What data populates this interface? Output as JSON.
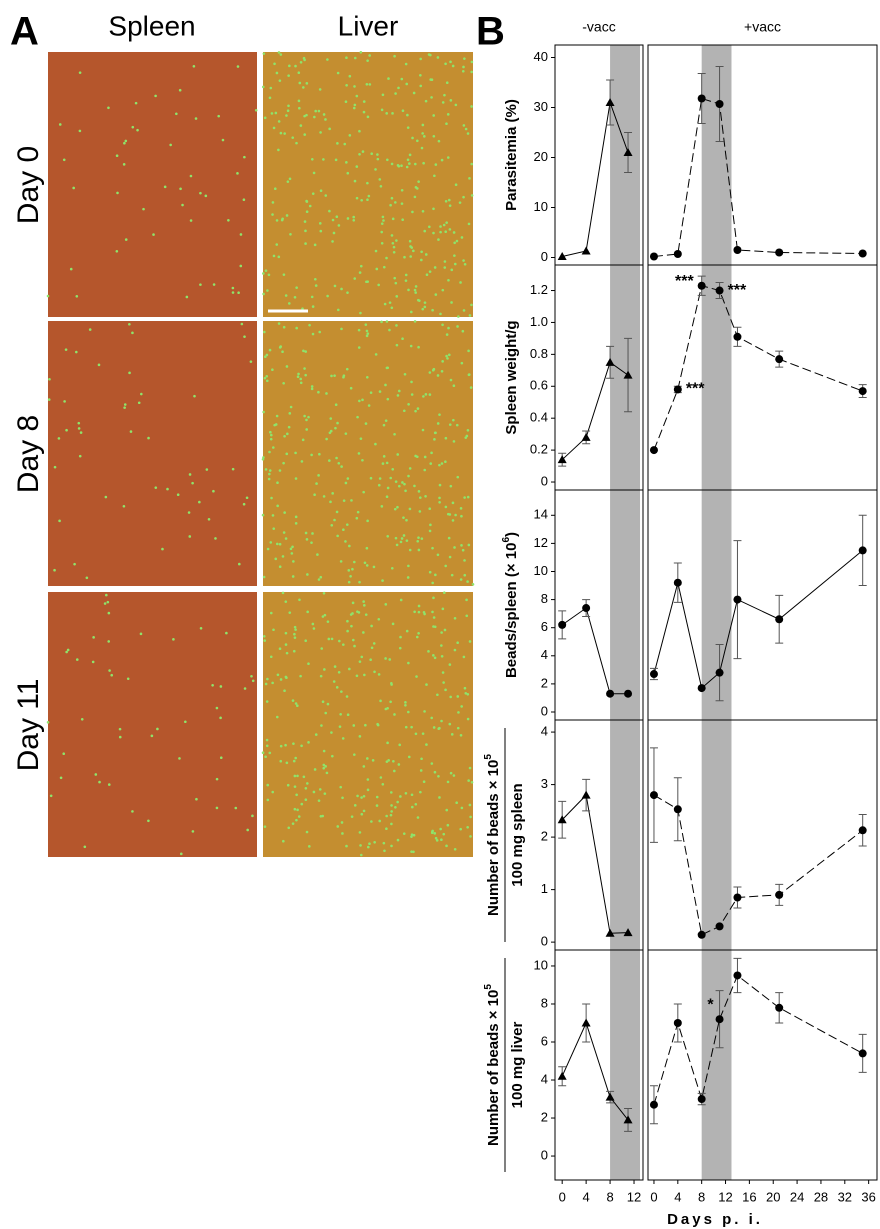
{
  "panel_a": {
    "label": "A",
    "columns": [
      "Spleen",
      "Liver"
    ],
    "rows": [
      "Day 0",
      "Day 8",
      "Day 11"
    ]
  },
  "panel_b_label": "B",
  "xlabel": "Days p. i.",
  "chart_data": [
    {
      "type": "line",
      "title": "-vacc",
      "ylabel": [
        "Parasitemia (%)"
      ],
      "xlim": [
        -1.2,
        13.5
      ],
      "ylim": [
        -1.5,
        42.5
      ],
      "yticks": [
        0,
        10,
        20,
        30,
        40
      ],
      "shade": [
        8,
        13
      ],
      "x": [
        0,
        4,
        8,
        11
      ],
      "series": [
        {
          "marker": "triangle",
          "dash": false,
          "values": [
            0.2,
            1.3,
            31,
            21
          ],
          "errors": [
            0,
            0,
            4.5,
            4
          ]
        }
      ]
    },
    {
      "type": "line",
      "title": "+vacc",
      "xlim": [
        -1,
        37.4
      ],
      "ylim": [
        -1.5,
        42.5
      ],
      "shade": [
        8,
        13
      ],
      "x": [
        0,
        4,
        8,
        11,
        14,
        21,
        35
      ],
      "series": [
        {
          "marker": "circle",
          "dash": true,
          "values": [
            0.2,
            0.7,
            31.8,
            30.7,
            1.5,
            1,
            0.8
          ],
          "errors": [
            0,
            0,
            5,
            7.5,
            0,
            0,
            0
          ]
        }
      ]
    },
    {
      "type": "line",
      "ylabel": [
        "Spleen weight/g"
      ],
      "xlim": [
        -1.2,
        13.5
      ],
      "ylim": [
        -0.05,
        1.36
      ],
      "yticks": [
        0,
        0.2,
        0.4,
        0.6,
        0.8,
        {
          "value": 1,
          "label": "1.0"
        },
        1.2
      ],
      "shade": [
        8,
        13
      ],
      "x": [
        0,
        4,
        8,
        11
      ],
      "series": [
        {
          "marker": "triangle",
          "dash": false,
          "values": [
            0.14,
            0.28,
            0.75,
            0.67
          ],
          "errors": [
            0.04,
            0.04,
            0.1,
            0.23
          ]
        }
      ]
    },
    {
      "type": "line",
      "xlim": [
        -1,
        37.4
      ],
      "ylim": [
        -0.05,
        1.36
      ],
      "shade": [
        8,
        13
      ],
      "x": [
        0,
        4,
        8,
        11,
        14,
        21,
        35
      ],
      "series": [
        {
          "marker": "circle",
          "dash": true,
          "values": [
            0.2,
            0.58,
            1.23,
            1.2,
            0.91,
            0.77,
            0.57
          ],
          "errors": [
            0,
            0.02,
            0.06,
            0.05,
            0.06,
            0.05,
            0.04
          ]
        }
      ],
      "annotations": [
        {
          "text": "***",
          "x": 4,
          "y": 0.58
        },
        {
          "text": "***",
          "x": 8,
          "y": 1.23
        },
        {
          "text": "***",
          "x": 11,
          "y": 1.2
        }
      ]
    },
    {
      "type": "line",
      "ylabel": [
        "Beads/spleen (× 10",
        "6",
        ")"
      ],
      "xlim": [
        -1.2,
        13.5
      ],
      "ylim": [
        -0.57,
        15.8
      ],
      "yticks": [
        0,
        2,
        4,
        6,
        8,
        10,
        12,
        14
      ],
      "shade": [
        8,
        13
      ],
      "x": [
        0,
        4,
        8,
        11
      ],
      "series": [
        {
          "marker": "circle",
          "dash": false,
          "values": [
            6.2,
            7.4,
            1.3,
            1.3
          ],
          "errors": [
            1,
            0.6,
            0,
            0
          ]
        }
      ]
    },
    {
      "type": "line",
      "xlim": [
        -1,
        37.4
      ],
      "ylim": [
        -0.57,
        15.8
      ],
      "shade": [
        8,
        13
      ],
      "x": [
        0,
        4,
        8,
        11,
        14,
        21,
        35
      ],
      "series": [
        {
          "marker": "circle",
          "dash": false,
          "values": [
            2.7,
            9.2,
            1.7,
            2.8,
            8,
            6.6,
            11.5
          ],
          "errors": [
            0.4,
            1.4,
            0,
            2,
            4.2,
            1.7,
            2.5
          ]
        }
      ]
    },
    {
      "type": "line",
      "ylabel": [
        "Number of beads × 10",
        "5"
      ],
      "ylabel2": "100 mg spleen",
      "xlim": [
        -1.2,
        13.5
      ],
      "ylim": [
        -0.15,
        4.23
      ],
      "yticks": [
        0,
        1,
        2,
        3,
        4
      ],
      "shade": [
        8,
        13
      ],
      "x": [
        0,
        4,
        8,
        11
      ],
      "series": [
        {
          "marker": "triangle",
          "dash": false,
          "values": [
            2.33,
            2.8,
            0.17,
            0.18
          ],
          "errors": [
            0.35,
            0.3,
            0,
            0
          ]
        }
      ]
    },
    {
      "type": "line",
      "xlim": [
        -1,
        37.4
      ],
      "ylim": [
        -0.15,
        4.23
      ],
      "shade": [
        8,
        13
      ],
      "x": [
        0,
        4,
        8,
        11,
        14,
        21,
        35
      ],
      "series": [
        {
          "marker": "circle",
          "dash": true,
          "values": [
            2.8,
            2.53,
            0.14,
            0.3,
            0.85,
            0.9,
            2.13
          ],
          "errors": [
            0.9,
            0.6,
            0,
            0,
            0.2,
            0.2,
            0.3
          ]
        }
      ]
    },
    {
      "type": "line",
      "ylabel": [
        "Number of beads × 10",
        "5"
      ],
      "ylabel2": "100 mg liver",
      "xlim": [
        -1.2,
        13.5
      ],
      "ylim": [
        -1.26,
        10.84
      ],
      "yticks": [
        0,
        2,
        4,
        6,
        8,
        10
      ],
      "xticks": [
        0,
        4,
        8,
        12
      ],
      "shade": [
        8,
        13
      ],
      "x": [
        0,
        4,
        8,
        11
      ],
      "series": [
        {
          "marker": "triangle",
          "dash": false,
          "values": [
            4.2,
            7,
            3.1,
            1.9
          ],
          "errors": [
            0.5,
            1,
            0.3,
            0.6
          ]
        }
      ]
    },
    {
      "type": "line",
      "xlim": [
        -1,
        37.4
      ],
      "ylim": [
        -1.26,
        10.84
      ],
      "xticks": [
        0,
        4,
        8,
        12,
        16,
        20,
        24,
        28,
        32,
        36
      ],
      "shade": [
        8,
        13
      ],
      "x": [
        0,
        4,
        8,
        11,
        14,
        21,
        35
      ],
      "series": [
        {
          "marker": "circle",
          "dash": true,
          "values": [
            2.7,
            7,
            3,
            7.2,
            9.5,
            7.8,
            5.4
          ],
          "errors": [
            1,
            1,
            0.3,
            1.5,
            0.9,
            0.8,
            1
          ]
        }
      ],
      "annotations": [
        {
          "text": "*",
          "x": 11,
          "y": 7.2
        }
      ]
    }
  ]
}
